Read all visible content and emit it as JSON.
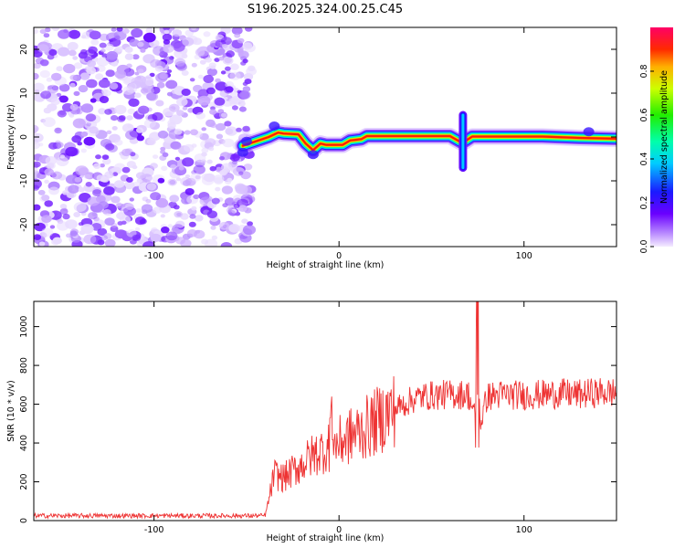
{
  "chart_data": [
    {
      "type": "heatmap",
      "title": "S196.2025.324.00.25.C45",
      "xlabel": "Height of straight line (km)",
      "ylabel": "Frequency (Hz)",
      "xlim": [
        -165,
        150
      ],
      "ylim": [
        -25,
        25
      ],
      "xticks": [
        -100,
        0,
        100
      ],
      "yticks": [
        -20,
        -10,
        0,
        10,
        20
      ],
      "noise_region": [
        -165,
        -50
      ],
      "ridge": [
        {
          "x": -52,
          "y": -2
        },
        {
          "x": -45,
          "y": -1
        },
        {
          "x": -38,
          "y": 0
        },
        {
          "x": -33,
          "y": 1
        },
        {
          "x": -30,
          "y": 0.8
        },
        {
          "x": -22,
          "y": 0.6
        },
        {
          "x": -18,
          "y": -1.5
        },
        {
          "x": -14,
          "y": -3
        },
        {
          "x": -10,
          "y": -1.5
        },
        {
          "x": -7,
          "y": -1.8
        },
        {
          "x": 2,
          "y": -1.8
        },
        {
          "x": 6,
          "y": -0.8
        },
        {
          "x": 12,
          "y": -0.5
        },
        {
          "x": 15,
          "y": 0.2
        },
        {
          "x": 60,
          "y": 0.2
        },
        {
          "x": 66,
          "y": -1.2
        },
        {
          "x": 68,
          "y": -1
        },
        {
          "x": 72,
          "y": 0.1
        },
        {
          "x": 110,
          "y": 0.1
        },
        {
          "x": 130,
          "y": -0.2
        },
        {
          "x": 150,
          "y": -0.4
        }
      ],
      "colorbar": {
        "label": "Normalized spectral amplitude",
        "range": [
          0,
          1
        ],
        "ticks": [
          "0.0",
          "0.2",
          "0.4",
          "0.6",
          "0.8"
        ]
      }
    },
    {
      "type": "line",
      "xlabel": "Height of straight line (km)",
      "ylabel": "SNR (10 * v/v)",
      "xlim": [
        -165,
        150
      ],
      "ylim": [
        0,
        1130
      ],
      "xticks": [
        -100,
        0,
        100
      ],
      "yticks": [
        0,
        200,
        400,
        600,
        800,
        1000
      ],
      "series": [
        {
          "name": "SNR",
          "color": "#ee3333",
          "x": [
            -165,
            -150,
            -120,
            -90,
            -60,
            -40,
            -39,
            -35,
            -30,
            -25,
            -20,
            -15,
            -10,
            -5,
            0,
            5,
            10,
            15,
            20,
            25,
            30,
            35,
            40,
            45,
            50,
            60,
            70,
            74,
            75,
            76,
            80,
            90,
            100,
            110,
            120,
            130,
            140,
            150
          ],
          "values": [
            25,
            25,
            25,
            25,
            25,
            25,
            60,
            240,
            220,
            255,
            290,
            330,
            360,
            380,
            400,
            430,
            455,
            480,
            510,
            545,
            575,
            600,
            625,
            640,
            645,
            650,
            650,
            520,
            1100,
            480,
            640,
            650,
            645,
            650,
            655,
            650,
            660,
            660
          ]
        }
      ]
    }
  ]
}
